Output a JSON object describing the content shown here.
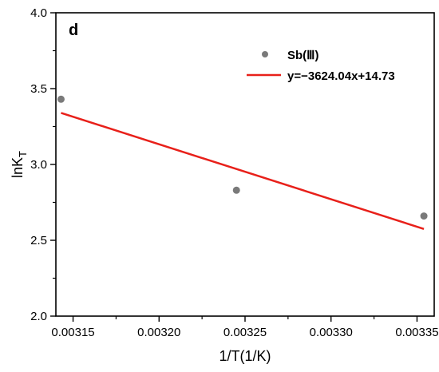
{
  "chart_data": {
    "type": "scatter",
    "panel_label": "d",
    "xlabel": "1/T(1/K)",
    "ylabel_main": "lnK",
    "ylabel_sub": "T",
    "xlim": [
      0.00314,
      0.00336
    ],
    "ylim": [
      2.0,
      4.0
    ],
    "x_ticks": [
      0.00315,
      0.0032,
      0.00325,
      0.0033,
      0.00335
    ],
    "x_tick_labels": [
      "0.00315",
      "0.00320",
      "0.00325",
      "0.00330",
      "0.00335"
    ],
    "y_ticks": [
      2.0,
      2.5,
      3.0,
      3.5,
      4.0
    ],
    "y_tick_labels": [
      "2.0",
      "2.5",
      "3.0",
      "3.5",
      "4.0"
    ],
    "grid": false,
    "legend_position": "top-right",
    "series": [
      {
        "name": "Sb(Ⅲ)",
        "kind": "scatter",
        "color": "#7a7a7a",
        "x": [
          0.003143,
          0.003245,
          0.003354
        ],
        "y": [
          3.43,
          2.83,
          2.66
        ]
      },
      {
        "name": "y=−3624.04x+14.73",
        "kind": "line",
        "color": "#e8201a",
        "slope": -3624.04,
        "intercept": 14.73,
        "x_range": [
          0.003143,
          0.003354
        ]
      }
    ]
  }
}
